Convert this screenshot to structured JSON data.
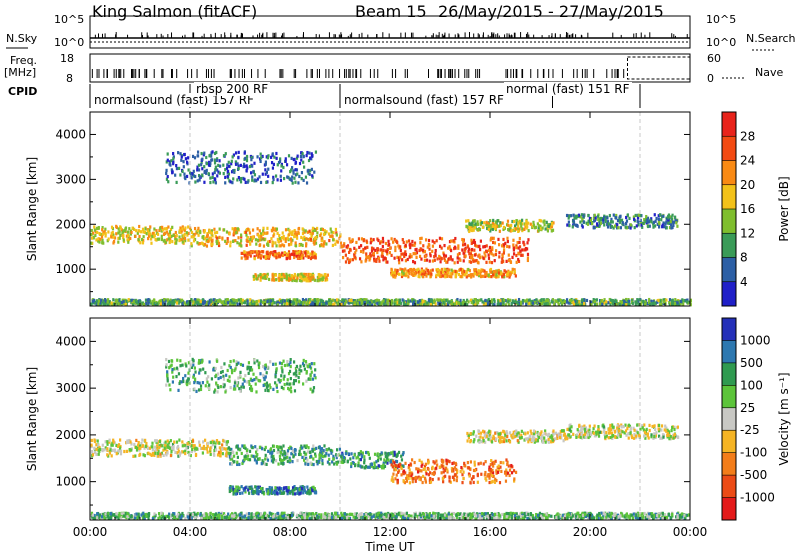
{
  "header": {
    "title": "King Salmon (fitACF)",
    "beam": "Beam 15",
    "date_range": "26/May/2015 - 27/May/2015"
  },
  "status": {
    "nsky_label": "N.Sky",
    "nsearch_label": "N.Search",
    "freq_label": "Freq.",
    "freq_unit": "[MHz]",
    "nave_label": "Nave",
    "cpid_label": "CPID",
    "nsky_ticks": [
      "10^5",
      "10^0"
    ],
    "nsearch_ticks": [
      "10^5",
      "10^0"
    ],
    "freq_ticks": [
      "18",
      "8"
    ],
    "nave_ticks": [
      "60",
      "0"
    ],
    "cpid_segments": [
      {
        "label": "normalsound (fast) 157 RF",
        "start": 0.0,
        "end": 4.0
      },
      {
        "label": "rbsp 200 RF",
        "start": 4.0,
        "end": 10.0
      },
      {
        "label": "normalsound (fast) 157 RF",
        "start": 10.0,
        "end": 22.0
      },
      {
        "label": "normal (fast) 151 RF",
        "start": 18.5,
        "end": 22.0
      }
    ]
  },
  "chart_data": [
    {
      "type": "heatmap",
      "name": "power",
      "ylabel": "Slant Range [km]",
      "xlabel": "",
      "xlim": [
        0,
        24
      ],
      "ylim": [
        180,
        4500
      ],
      "y_ticks": [
        1000,
        2000,
        3000,
        4000
      ],
      "x_ticks": [
        "00:00",
        "04:00",
        "08:00",
        "12:00",
        "16:00",
        "20:00",
        "00:00"
      ],
      "colorbar_label": "Power [dB]",
      "colorbar_ticks": [
        "28",
        "24",
        "20",
        "16",
        "12",
        "8",
        "4"
      ],
      "colorbar_colors": [
        "#e8231b",
        "#f34a12",
        "#f98a14",
        "#f3c21a",
        "#7fbe2e",
        "#3a9b58",
        "#2c5fa5",
        "#2020c8"
      ],
      "bands": [
        {
          "t0": 0.0,
          "t1": 4.0,
          "r_center": 1800,
          "r_width": 380,
          "level": 0.55
        },
        {
          "t0": 4.0,
          "t1": 10.0,
          "r_center": 1750,
          "r_width": 400,
          "level": 0.6
        },
        {
          "t0": 6.0,
          "t1": 9.0,
          "r_center": 1350,
          "r_width": 160,
          "level": 0.75
        },
        {
          "t0": 6.5,
          "t1": 9.5,
          "r_center": 850,
          "r_width": 150,
          "level": 0.55
        },
        {
          "t0": 10.0,
          "t1": 17.5,
          "r_center": 1450,
          "r_width": 550,
          "level": 0.8
        },
        {
          "t0": 12.0,
          "t1": 17.0,
          "r_center": 950,
          "r_width": 180,
          "level": 0.65
        },
        {
          "t0": 15.0,
          "t1": 18.5,
          "r_center": 2000,
          "r_width": 250,
          "level": 0.5
        },
        {
          "t0": 19.0,
          "t1": 23.5,
          "r_center": 2100,
          "r_width": 300,
          "level": 0.25
        },
        {
          "t0": 0.0,
          "t1": 24.0,
          "r_center": 300,
          "r_width": 120,
          "level": 0.35
        },
        {
          "t0": 3.0,
          "t1": 9.0,
          "r_center": 3300,
          "r_width": 700,
          "level": 0.2
        }
      ]
    },
    {
      "type": "heatmap",
      "name": "velocity",
      "ylabel": "Slant Range [km]",
      "xlabel": "Time UT",
      "xlim": [
        0,
        24
      ],
      "ylim": [
        180,
        4500
      ],
      "y_ticks": [
        1000,
        2000,
        3000,
        4000
      ],
      "x_ticks": [
        "00:00",
        "04:00",
        "08:00",
        "12:00",
        "16:00",
        "20:00",
        "00:00"
      ],
      "colorbar_label": "Velocity [m s⁻¹]",
      "colorbar_ticks": [
        "1000",
        "500",
        "100",
        "25",
        "-25",
        "-100",
        "-500",
        "-1000"
      ],
      "colorbar_colors": [
        "#2430b8",
        "#2d78b0",
        "#2f9a50",
        "#5cc43a",
        "#c8c8c4",
        "#f5b424",
        "#f37d1a",
        "#ec4b16",
        "#e41a1a"
      ],
      "bands": [
        {
          "t0": 0.0,
          "t1": 5.5,
          "r_center": 1750,
          "r_width": 350,
          "level": 0.5
        },
        {
          "t0": 5.5,
          "t1": 10.0,
          "r_center": 1600,
          "r_width": 400,
          "level": 0.7
        },
        {
          "t0": 5.5,
          "t1": 9.0,
          "r_center": 850,
          "r_width": 160,
          "level": 0.78
        },
        {
          "t0": 10.0,
          "t1": 12.5,
          "r_center": 1500,
          "r_width": 350,
          "level": 0.75
        },
        {
          "t0": 12.0,
          "t1": 17.0,
          "r_center": 1250,
          "r_width": 500,
          "level": 0.25
        },
        {
          "t0": 15.0,
          "t1": 19.0,
          "r_center": 2000,
          "r_width": 250,
          "level": 0.48
        },
        {
          "t0": 19.0,
          "t1": 23.5,
          "r_center": 2100,
          "r_width": 300,
          "level": 0.5
        },
        {
          "t0": 0.0,
          "t1": 24.0,
          "r_center": 300,
          "r_width": 120,
          "level": 0.65
        },
        {
          "t0": 3.0,
          "t1": 9.0,
          "r_center": 3300,
          "r_width": 700,
          "level": 0.68
        }
      ]
    }
  ]
}
